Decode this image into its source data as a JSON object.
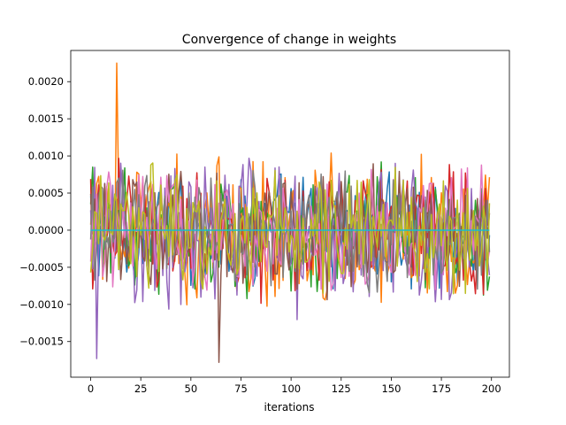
{
  "chart_data": {
    "type": "line",
    "title": "Convergence of change in weights",
    "xlabel": "iterations",
    "ylabel": "",
    "xlim": [
      -9.95,
      208.95
    ],
    "ylim": [
      -0.00198,
      0.00242
    ],
    "xticks": [
      0,
      25,
      50,
      75,
      100,
      125,
      150,
      175,
      200
    ],
    "xtick_labels": [
      "0",
      "25",
      "50",
      "75",
      "100",
      "125",
      "150",
      "175",
      "200"
    ],
    "yticks": [
      -0.0015,
      -0.001,
      -0.0005,
      0.0,
      0.0005,
      0.001,
      0.0015,
      0.002
    ],
    "ytick_labels": [
      "−0.0015",
      "−0.0010",
      "−0.0005",
      "0.0000",
      "0.0005",
      "0.0010",
      "0.0015",
      "0.0020"
    ],
    "grid": false,
    "legend": false,
    "x": {
      "start": 0,
      "end": 199,
      "step": 1
    },
    "series": [
      {
        "color": "#1f77b4",
        "amplitude": 0.00055
      },
      {
        "color": "#ff7f0e",
        "amplitude": 0.0007,
        "peak": {
          "x": 13,
          "y": 0.00225
        }
      },
      {
        "color": "#2ca02c",
        "amplitude": 0.0006
      },
      {
        "color": "#d62728",
        "amplitude": 0.00065
      },
      {
        "color": "#9467bd",
        "amplitude": 0.0008,
        "trough": {
          "x": 3,
          "y": -0.00173
        }
      },
      {
        "color": "#8c564b",
        "amplitude": 0.0006,
        "trough": {
          "x": 64,
          "y": -0.00178
        }
      },
      {
        "color": "#e377c2",
        "amplitude": 0.0006
      },
      {
        "color": "#7f7f7f",
        "amplitude": 0.00055
      },
      {
        "color": "#bcbd22",
        "amplitude": 0.0006
      },
      {
        "color": "#17becf",
        "amplitude": 0.0,
        "constant": 0.0
      }
    ]
  }
}
